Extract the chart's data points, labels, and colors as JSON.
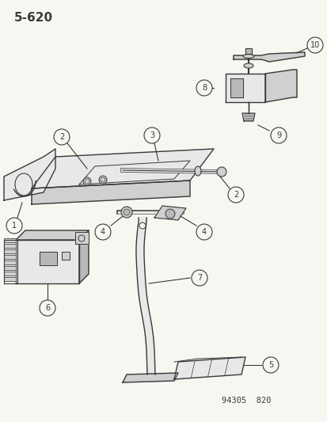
{
  "title": "5-620",
  "part_number": "94305  820",
  "bg": "#f8f6f0",
  "lc": "#3a3a3a",
  "lc_light": "#888888",
  "fill_light": "#e8e8e8",
  "fill_mid": "#d0d0d0",
  "fill_dark": "#b8b8b8",
  "white": "#ffffff"
}
